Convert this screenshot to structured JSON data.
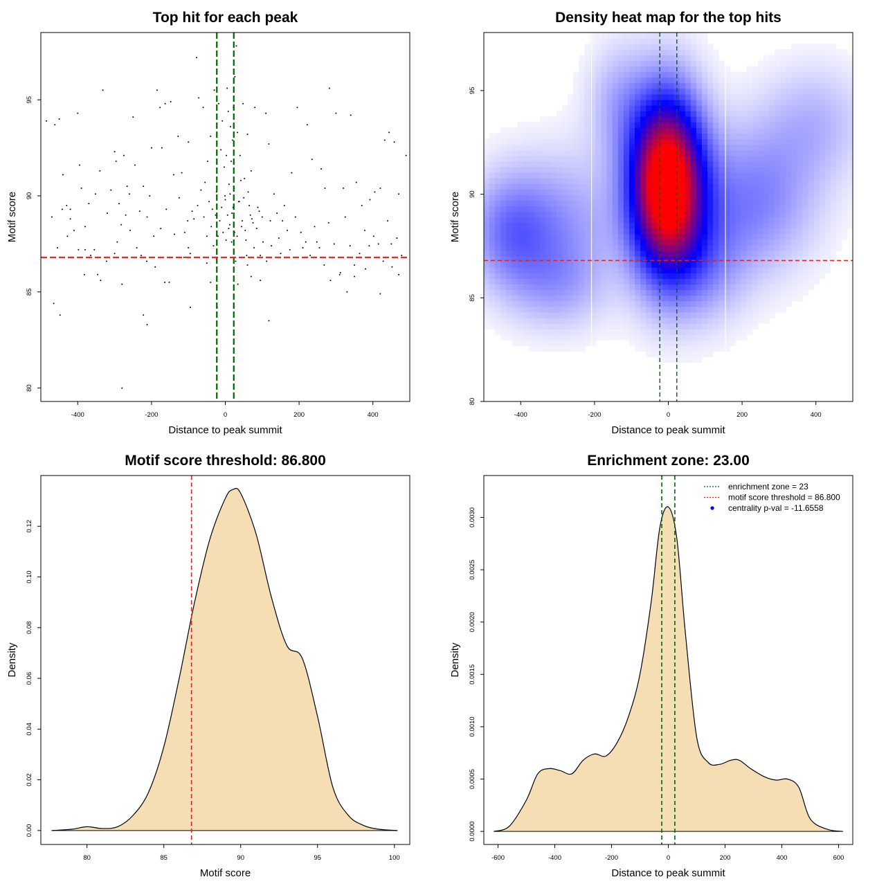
{
  "chart_data": [
    {
      "type": "scatter",
      "title": "Top hit for each peak",
      "xlabel": "Distance to peak summit",
      "ylabel": "Motif score",
      "xlim": [
        -500,
        500
      ],
      "ylim": [
        79.3,
        98.5
      ],
      "xticks": [
        -400,
        -200,
        0,
        200,
        400
      ],
      "yticks": [
        80,
        85,
        90,
        95
      ],
      "xtick_labels": [
        "-400",
        "-200",
        "0",
        "200",
        "400"
      ],
      "ytick_labels": [
        "80",
        "85",
        "90",
        "95"
      ],
      "hlines": [
        {
          "y": 86.8,
          "color": "#dd2222",
          "style": "dashed"
        }
      ],
      "vlines": [
        {
          "x": -23,
          "color": "#006400",
          "style": "dashed"
        },
        {
          "x": 23,
          "color": "#006400",
          "style": "dashed"
        }
      ],
      "points": [
        [
          -485,
          93.9
        ],
        [
          -462,
          93.7
        ],
        [
          -450,
          94.0
        ],
        [
          -440,
          91.1
        ],
        [
          -430,
          89.5
        ],
        [
          -420,
          88.8
        ],
        [
          -400,
          94.3
        ],
        [
          -395,
          91.6
        ],
        [
          -390,
          90.4
        ],
        [
          -370,
          89.6
        ],
        [
          -355,
          87.2
        ],
        [
          -340,
          91.3
        ],
        [
          -332,
          95.5
        ],
        [
          -320,
          89.1
        ],
        [
          -300,
          92.3
        ],
        [
          -293,
          87.6
        ],
        [
          -288,
          89.6
        ],
        [
          -275,
          92.1
        ],
        [
          -266,
          90.5
        ],
        [
          -260,
          90.1
        ],
        [
          -250,
          94.1
        ],
        [
          -245,
          91.6
        ],
        [
          -232,
          89.2
        ],
        [
          -222,
          90.5
        ],
        [
          -213,
          86.6
        ],
        [
          -200,
          92.5
        ],
        [
          -194,
          87.9
        ],
        [
          -185,
          95.5
        ],
        [
          -177,
          94.6
        ],
        [
          -172,
          92.5
        ],
        [
          -163,
          94.8
        ],
        [
          -148,
          94.9
        ],
        [
          -140,
          91.1
        ],
        [
          -128,
          93.1
        ],
        [
          -118,
          91.2
        ],
        [
          -110,
          88.1
        ],
        [
          -100,
          92.8
        ],
        [
          -90,
          89.2
        ],
        [
          -78,
          97.2
        ],
        [
          -72,
          95.1
        ],
        [
          -60,
          94.6
        ],
        [
          -55,
          90.7
        ],
        [
          -48,
          91.8
        ],
        [
          -40,
          93.1
        ],
        [
          -35,
          89.3
        ],
        [
          -30,
          95.5
        ],
        [
          -24,
          90.2
        ],
        [
          -18,
          94.8
        ],
        [
          -12,
          92.4
        ],
        [
          -8,
          93.9
        ],
        [
          -3,
          91.5
        ],
        [
          0,
          89.8
        ],
        [
          3,
          92.1
        ],
        [
          5,
          95.6
        ],
        [
          8,
          94.4
        ],
        [
          10,
          90.6
        ],
        [
          12,
          88.5
        ],
        [
          14,
          93.6
        ],
        [
          16,
          91.8
        ],
        [
          18,
          89.1
        ],
        [
          20,
          92.9
        ],
        [
          22,
          94.6
        ],
        [
          24,
          90.4
        ],
        [
          26,
          96.2
        ],
        [
          30,
          97.8
        ],
        [
          33,
          93.3
        ],
        [
          36,
          89.7
        ],
        [
          40,
          92.1
        ],
        [
          44,
          88.4
        ],
        [
          48,
          94.8
        ],
        [
          52,
          90.9
        ],
        [
          56,
          87.7
        ],
        [
          60,
          93.2
        ],
        [
          65,
          89.5
        ],
        [
          70,
          91.3
        ],
        [
          75,
          88.6
        ],
        [
          80,
          94.6
        ],
        [
          88,
          89.4
        ],
        [
          95,
          86.9
        ],
        [
          100,
          88.9
        ],
        [
          110,
          94.3
        ],
        [
          118,
          92.7
        ],
        [
          125,
          87.4
        ],
        [
          140,
          89.1
        ],
        [
          155,
          88.7
        ],
        [
          168,
          88.2
        ],
        [
          180,
          91.2
        ],
        [
          195,
          94.6
        ],
        [
          210,
          87.3
        ],
        [
          222,
          93.7
        ],
        [
          235,
          91.9
        ],
        [
          248,
          87.6
        ],
        [
          260,
          91.4
        ],
        [
          270,
          90.4
        ],
        [
          282,
          95.6
        ],
        [
          300,
          94.3
        ],
        [
          320,
          90.4
        ],
        [
          340,
          94.2
        ],
        [
          355,
          90.7
        ],
        [
          370,
          89.5
        ],
        [
          380,
          86.2
        ],
        [
          392,
          89.8
        ],
        [
          405,
          90.2
        ],
        [
          420,
          90.4
        ],
        [
          432,
          92.9
        ],
        [
          444,
          93.3
        ],
        [
          458,
          92.8
        ],
        [
          470,
          90.1
        ],
        [
          490,
          92.1
        ],
        [
          -470,
          88.9
        ],
        [
          -455,
          87.3
        ],
        [
          -442,
          89.3
        ],
        [
          -428,
          87.9
        ],
        [
          -410,
          88.2
        ],
        [
          -398,
          87.2
        ],
        [
          -380,
          88.4
        ],
        [
          -365,
          86.9
        ],
        [
          -352,
          90.1
        ],
        [
          -338,
          85.6
        ],
        [
          -322,
          86.6
        ],
        [
          -310,
          90.3
        ],
        [
          -296,
          91.8
        ],
        [
          -282,
          88.5
        ],
        [
          -270,
          89.0
        ],
        [
          -258,
          88.2
        ],
        [
          -240,
          87.3
        ],
        [
          -228,
          86.9
        ],
        [
          -212,
          88.9
        ],
        [
          -205,
          90.0
        ],
        [
          -190,
          86.3
        ],
        [
          -175,
          88.3
        ],
        [
          -160,
          89.3
        ],
        [
          -152,
          85.5
        ],
        [
          -138,
          88.0
        ],
        [
          -125,
          89.9
        ],
        [
          -112,
          86.8
        ],
        [
          -102,
          88.7
        ],
        [
          -95,
          87.0
        ],
        [
          -85,
          88.8
        ],
        [
          -75,
          89.5
        ],
        [
          -66,
          90.3
        ],
        [
          -58,
          88.9
        ],
        [
          -50,
          87.9
        ],
        [
          -44,
          89.7
        ],
        [
          -38,
          88.4
        ],
        [
          -32,
          87.4
        ],
        [
          -26,
          89.0
        ],
        [
          -20,
          87.9
        ],
        [
          -15,
          88.7
        ],
        [
          -10,
          89.4
        ],
        [
          -6,
          88.1
        ],
        [
          -1,
          90.0
        ],
        [
          2,
          87.7
        ],
        [
          6,
          89.0
        ],
        [
          9,
          88.3
        ],
        [
          13,
          90.1
        ],
        [
          17,
          87.6
        ],
        [
          21,
          89.4
        ],
        [
          25,
          88.1
        ],
        [
          28,
          86.6
        ],
        [
          32,
          87.9
        ],
        [
          38,
          89.7
        ],
        [
          42,
          90.8
        ],
        [
          46,
          88.7
        ],
        [
          50,
          89.9
        ],
        [
          54,
          88.2
        ],
        [
          58,
          86.9
        ],
        [
          62,
          90.2
        ],
        [
          68,
          89.0
        ],
        [
          72,
          88.8
        ],
        [
          78,
          87.3
        ],
        [
          85,
          88.3
        ],
        [
          92,
          89.2
        ],
        [
          102,
          87.6
        ],
        [
          112,
          86.6
        ],
        [
          122,
          88.7
        ],
        [
          132,
          90.1
        ],
        [
          145,
          87.8
        ],
        [
          160,
          89.5
        ],
        [
          175,
          87.2
        ],
        [
          190,
          88.9
        ],
        [
          205,
          88.1
        ],
        [
          218,
          87.6
        ],
        [
          230,
          86.9
        ],
        [
          242,
          88.4
        ],
        [
          255,
          87.3
        ],
        [
          268,
          86.4
        ],
        [
          280,
          88.6
        ],
        [
          295,
          87.5
        ],
        [
          312,
          86.0
        ],
        [
          325,
          88.9
        ],
        [
          338,
          87.4
        ],
        [
          350,
          85.8
        ],
        [
          364,
          87.0
        ],
        [
          378,
          88.2
        ],
        [
          390,
          87.4
        ],
        [
          402,
          87.9
        ],
        [
          415,
          87.5
        ],
        [
          428,
          86.6
        ],
        [
          440,
          88.7
        ],
        [
          452,
          86.3
        ],
        [
          465,
          87.8
        ],
        [
          478,
          86.9
        ],
        [
          -465,
          84.4
        ],
        [
          -448,
          83.8
        ],
        [
          -382,
          85.9
        ],
        [
          -346,
          85.9
        ],
        [
          -280,
          85.4
        ],
        [
          -222,
          83.8
        ],
        [
          -212,
          83.3
        ],
        [
          -164,
          85.5
        ],
        [
          -95,
          84.2
        ],
        [
          -40,
          85.5
        ],
        [
          -22,
          84.2
        ],
        [
          34,
          85.4
        ],
        [
          70,
          85.8
        ],
        [
          95,
          85.6
        ],
        [
          118,
          83.5
        ],
        [
          285,
          85.6
        ],
        [
          330,
          85.0
        ],
        [
          420,
          84.9
        ],
        [
          470,
          85.9
        ],
        [
          -280,
          80.0
        ],
        [
          310,
          85.9
        ],
        [
          -420,
          89.3
        ],
        [
          -380,
          87.2
        ],
        [
          -300,
          87.0
        ],
        [
          -100,
          87.3
        ],
        [
          150,
          87.0
        ],
        [
          350,
          86.4
        ],
        [
          450,
          87.5
        ],
        [
          -50,
          86.5
        ],
        [
          60,
          86.4
        ]
      ]
    },
    {
      "type": "heatmap",
      "title": "Density heat map for the top hits",
      "xlabel": "Distance to peak summit",
      "ylabel": "Motif score",
      "xlim": [
        -500,
        500
      ],
      "ylim": [
        80,
        97.8
      ],
      "xticks": [
        -400,
        -200,
        0,
        200,
        400
      ],
      "yticks": [
        80,
        85,
        90,
        95
      ],
      "xtick_labels": [
        "-400",
        "-200",
        "0",
        "200",
        "400"
      ],
      "ytick_labels": [
        "80",
        "85",
        "90",
        "95"
      ],
      "hlines": [
        {
          "y": 86.8,
          "color": "#dd2222",
          "style": "dashed"
        }
      ],
      "vlines": [
        {
          "x": -23,
          "color": "#006400",
          "style": "dashed"
        },
        {
          "x": 23,
          "color": "#006400",
          "style": "dashed"
        }
      ],
      "separators_x": [
        -208,
        155
      ],
      "hotspots": [
        {
          "x": -5,
          "y": 90.5,
          "sx": 70,
          "sy": 3.0,
          "w": 1.0
        },
        {
          "x": -430,
          "y": 88.2,
          "sx": 80,
          "sy": 2.0,
          "w": 0.22
        },
        {
          "x": 230,
          "y": 89.8,
          "sx": 120,
          "sy": 2.5,
          "w": 0.22
        },
        {
          "x": -280,
          "y": 88.5,
          "sx": 110,
          "sy": 2.5,
          "w": 0.16
        },
        {
          "x": 400,
          "y": 93.5,
          "sx": 100,
          "sy": 2.0,
          "w": 0.12
        },
        {
          "x": -140,
          "y": 94.5,
          "sx": 60,
          "sy": 2.0,
          "w": 0.12
        },
        {
          "x": 100,
          "y": 86.5,
          "sx": 80,
          "sy": 2.0,
          "w": 0.14
        },
        {
          "x": -300,
          "y": 85.5,
          "sx": 90,
          "sy": 1.5,
          "w": 0.1
        }
      ]
    },
    {
      "type": "area",
      "title": "Motif score threshold: 86.800",
      "xlabel": "Motif score",
      "ylabel": "Density",
      "xlim": [
        77,
        101
      ],
      "ylim": [
        -0.0055,
        0.14
      ],
      "xticks": [
        80,
        85,
        90,
        95,
        100
      ],
      "yticks": [
        0.0,
        0.02,
        0.04,
        0.06,
        0.08,
        0.1,
        0.12
      ],
      "xtick_labels": [
        "80",
        "85",
        "90",
        "95",
        "100"
      ],
      "ytick_labels": [
        "0.00",
        "0.02",
        "0.04",
        "0.06",
        "0.08",
        "0.10",
        "0.12"
      ],
      "vlines": [
        {
          "x": 86.8,
          "color": "#dd2222",
          "style": "dashed"
        }
      ],
      "fill": "#f5deb3",
      "x": [
        77.7,
        79,
        80,
        81,
        82,
        83,
        84,
        85,
        86,
        87,
        88,
        89,
        89.5,
        90,
        91,
        92,
        93,
        94,
        95,
        96,
        97,
        98,
        99,
        100.2
      ],
      "y": [
        0.0,
        0.0005,
        0.0015,
        0.0008,
        0.0015,
        0.006,
        0.015,
        0.033,
        0.06,
        0.09,
        0.115,
        0.131,
        0.1345,
        0.133,
        0.117,
        0.092,
        0.073,
        0.068,
        0.045,
        0.017,
        0.006,
        0.002,
        0.0005,
        0.0
      ]
    },
    {
      "type": "area",
      "title": "Enrichment zone: 23.00",
      "xlabel": "Distance to peak summit",
      "ylabel": "Density",
      "xlim": [
        -650,
        650
      ],
      "ylim": [
        -0.000125,
        0.0034
      ],
      "xticks": [
        -600,
        -400,
        -200,
        0,
        200,
        400,
        600
      ],
      "yticks": [
        0.0,
        0.0005,
        0.001,
        0.0015,
        0.002,
        0.0025,
        0.003
      ],
      "xtick_labels": [
        "-600",
        "-400",
        "-200",
        "0",
        "200",
        "400",
        "600"
      ],
      "ytick_labels": [
        "0.0000",
        "0.0005",
        "0.0010",
        "0.0015",
        "0.0020",
        "0.0025",
        "0.0030"
      ],
      "vlines": [
        {
          "x": -23,
          "color": "#006400",
          "style": "dashed"
        },
        {
          "x": 23,
          "color": "#006400",
          "style": "dashed"
        }
      ],
      "fill": "#f5deb3",
      "x": [
        -615,
        -560,
        -500,
        -460,
        -420,
        -380,
        -340,
        -300,
        -260,
        -220,
        -180,
        -140,
        -100,
        -60,
        -30,
        0,
        30,
        60,
        100,
        140,
        180,
        220,
        250,
        290,
        340,
        380,
        420,
        460,
        500,
        560,
        615
      ],
      "y": [
        0.0,
        5e-05,
        0.0003,
        0.00055,
        0.0006,
        0.00058,
        0.00055,
        0.00068,
        0.00074,
        0.00072,
        0.00085,
        0.0011,
        0.0015,
        0.0022,
        0.0029,
        0.0031,
        0.0028,
        0.0019,
        0.0009,
        0.00066,
        0.00064,
        0.00068,
        0.00068,
        0.0006,
        0.00052,
        0.00049,
        0.0005,
        0.00042,
        0.00012,
        2e-05,
        0.0
      ],
      "legend": {
        "position": "top-right",
        "entries": [
          {
            "label": "enrichment zone = 23",
            "color": "#006400",
            "marker": "dotted-line"
          },
          {
            "label": "motif score threshold = 86.800",
            "color": "#dd2222",
            "marker": "dotted-line"
          },
          {
            "label": "centrality p-val = -11.6558",
            "color": "#0000ff",
            "marker": "dot"
          }
        ]
      }
    }
  ]
}
